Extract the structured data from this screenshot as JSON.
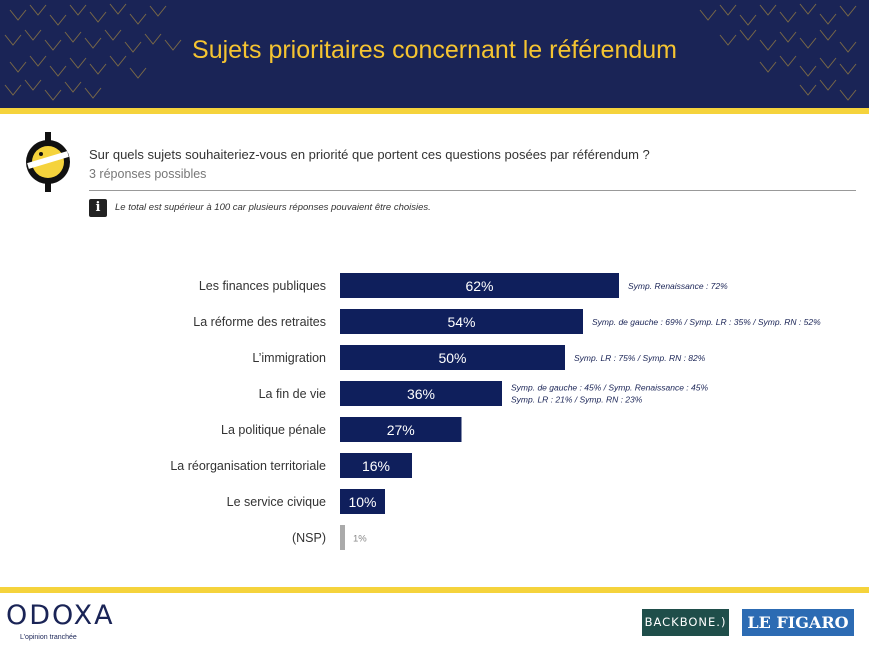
{
  "header": {
    "title": "Sujets prioritaires concernant le référendum"
  },
  "question": {
    "text": "Sur quels sujets souhaiteriez-vous en priorité que portent ces questions posées par référendum ?",
    "subtext": "3 réponses possibles"
  },
  "note": {
    "icon": "info-icon",
    "text": "Le total est supérieur à 100 car plusieurs réponses pouvaient être choisies."
  },
  "colors": {
    "navy": "#1a2456",
    "gold": "#f5d33c",
    "bar": "#0f1f5c",
    "nsp": "#aaaaaa"
  },
  "chart_data": {
    "type": "bar",
    "orientation": "horizontal",
    "categories": [
      "Les finances publiques",
      "La réforme des retraites",
      "L’immigration",
      "La fin de vie",
      "La politique pénale",
      "La réorganisation territoriale",
      "Le service civique",
      "(NSP)"
    ],
    "values": [
      62,
      54,
      50,
      36,
      27,
      16,
      10,
      1
    ],
    "value_labels": [
      "62%",
      "54%",
      "50%",
      "36%",
      "27%",
      "16%",
      "10%",
      "1%"
    ],
    "annotations": [
      [
        "Symp. Renaissance : 72%"
      ],
      [
        "Symp. de gauche : 69% / Symp. LR : 35% / Symp. RN : 52%"
      ],
      [
        "Symp. LR : 75% / Symp. RN : 82%"
      ],
      [
        "Symp. de gauche : 45% / Symp. Renaissance : 45%",
        "Symp. LR : 21% / Symp. RN : 23%"
      ],
      [],
      [],
      [],
      []
    ],
    "xlim": [
      0,
      100
    ],
    "grid": false,
    "legend": "none"
  },
  "footer": {
    "brand": "ODOXA",
    "tagline": "L’opinion tranchée",
    "partner1": "BACKBONE.)",
    "partner2": "LE FIGARO"
  }
}
